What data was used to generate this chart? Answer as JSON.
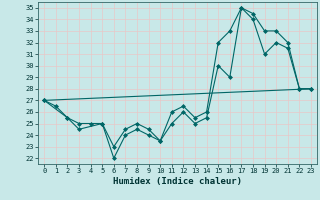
{
  "xlabel": "Humidex (Indice chaleur)",
  "bg_color": "#c8e8e8",
  "line_color": "#006666",
  "grid_color": "#e8c8c8",
  "xlim": [
    -0.5,
    23.5
  ],
  "ylim": [
    21.5,
    35.5
  ],
  "yticks": [
    22,
    23,
    24,
    25,
    26,
    27,
    28,
    29,
    30,
    31,
    32,
    33,
    34,
    35
  ],
  "xticks": [
    0,
    1,
    2,
    3,
    4,
    5,
    6,
    7,
    8,
    9,
    10,
    11,
    12,
    13,
    14,
    15,
    16,
    17,
    18,
    19,
    20,
    21,
    22,
    23
  ],
  "line1_x": [
    0,
    1,
    2,
    3,
    4,
    5,
    6,
    7,
    8,
    9,
    10,
    11,
    12,
    13,
    14,
    15,
    16,
    17,
    18,
    19,
    20,
    21,
    22,
    23
  ],
  "line1_y": [
    27,
    26.5,
    25.5,
    25,
    25,
    25,
    22,
    24,
    24.5,
    24,
    23.5,
    25,
    26,
    25,
    25.5,
    30,
    29,
    35,
    34,
    31,
    32,
    31.5,
    28,
    28
  ],
  "line2_x": [
    0,
    2,
    3,
    5,
    6,
    7,
    8,
    9,
    10,
    11,
    12,
    13,
    14,
    15,
    16,
    17,
    18,
    19,
    20,
    21,
    22,
    23
  ],
  "line2_y": [
    27,
    25.5,
    24.5,
    25,
    23,
    24.5,
    25,
    24.5,
    23.5,
    26,
    26.5,
    25.5,
    26,
    32,
    33,
    35,
    34.5,
    33,
    33,
    32,
    28,
    28
  ],
  "line3_x": [
    0,
    23
  ],
  "line3_y": [
    27,
    28
  ]
}
